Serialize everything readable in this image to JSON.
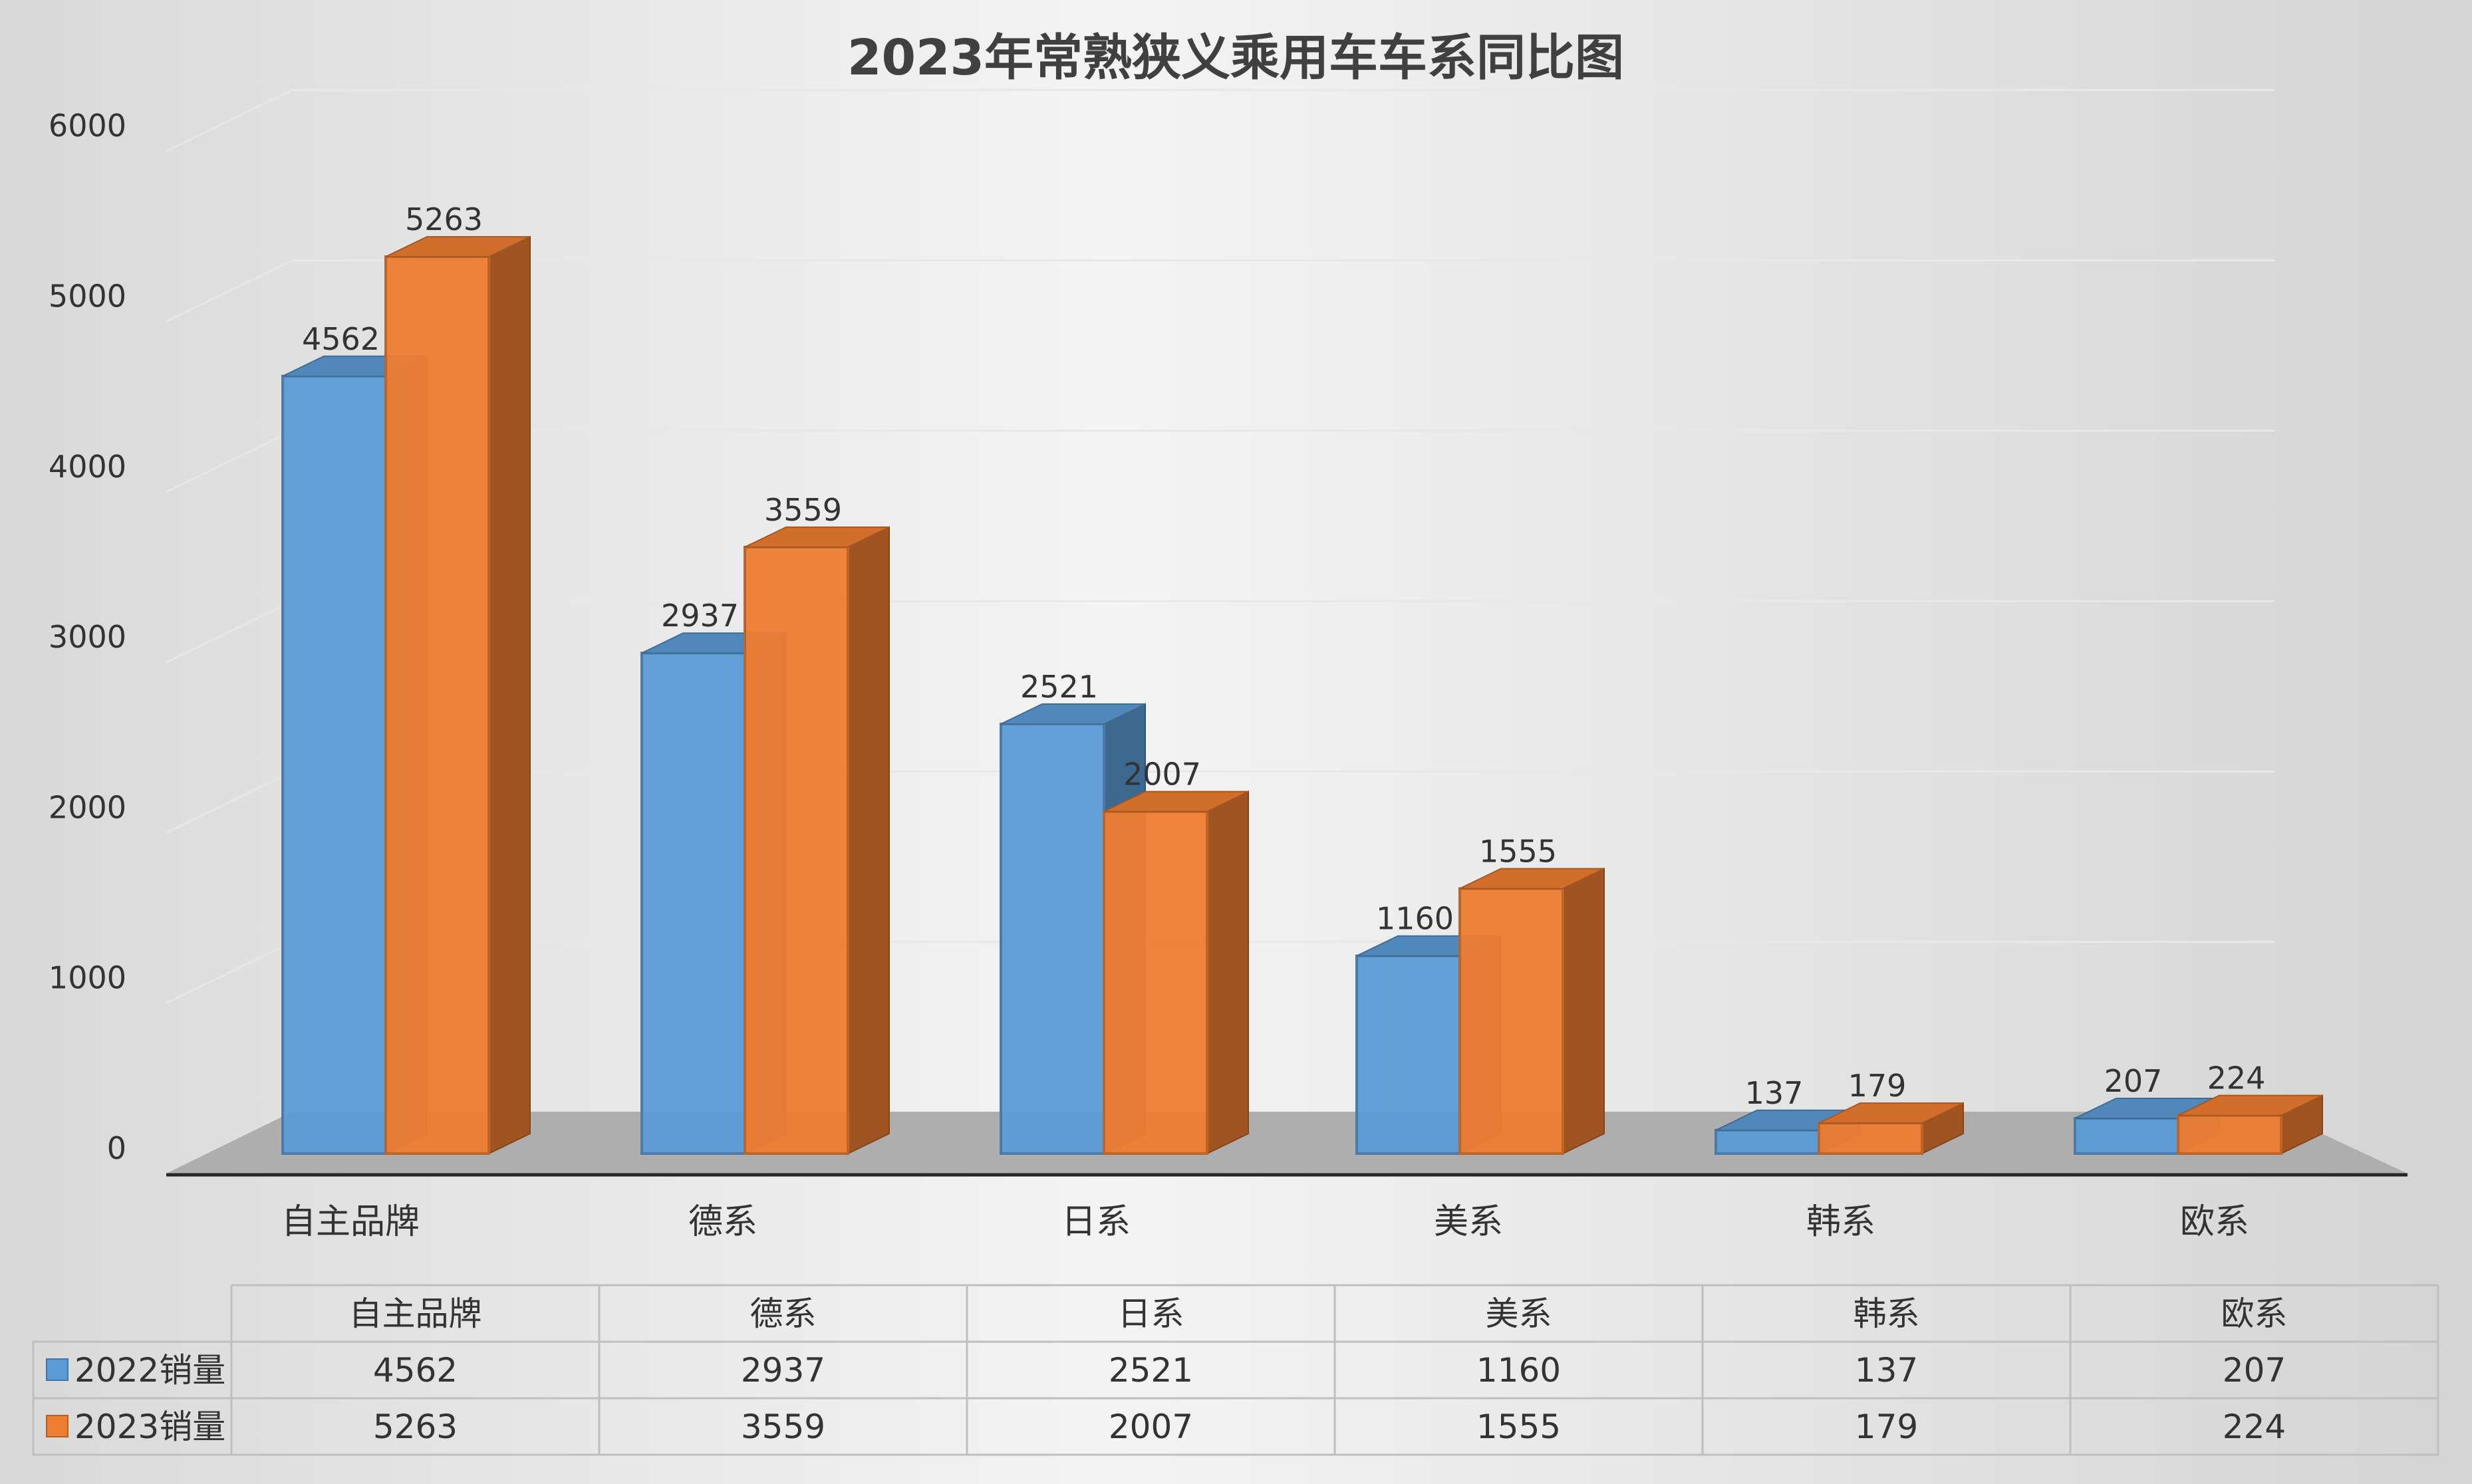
{
  "chart_data": {
    "type": "bar",
    "title": "2023年常熟狭义乘用车车系同比图",
    "categories": [
      "自主品牌",
      "德系",
      "日系",
      "美系",
      "韩系",
      "欧系"
    ],
    "series": [
      {
        "name": "2022销量",
        "values": [
          4562,
          2937,
          2521,
          1160,
          137,
          207
        ],
        "color": "#5b9bd5"
      },
      {
        "name": "2023销量",
        "values": [
          5263,
          3559,
          2007,
          1555,
          179,
          224
        ],
        "color": "#ed7d31"
      }
    ],
    "y_ticks": [
      0,
      1000,
      2000,
      3000,
      4000,
      5000,
      6000
    ],
    "ylim": [
      0,
      6000
    ],
    "grid": true,
    "legend": "data-table-left",
    "style": "3d-clustered-column"
  }
}
